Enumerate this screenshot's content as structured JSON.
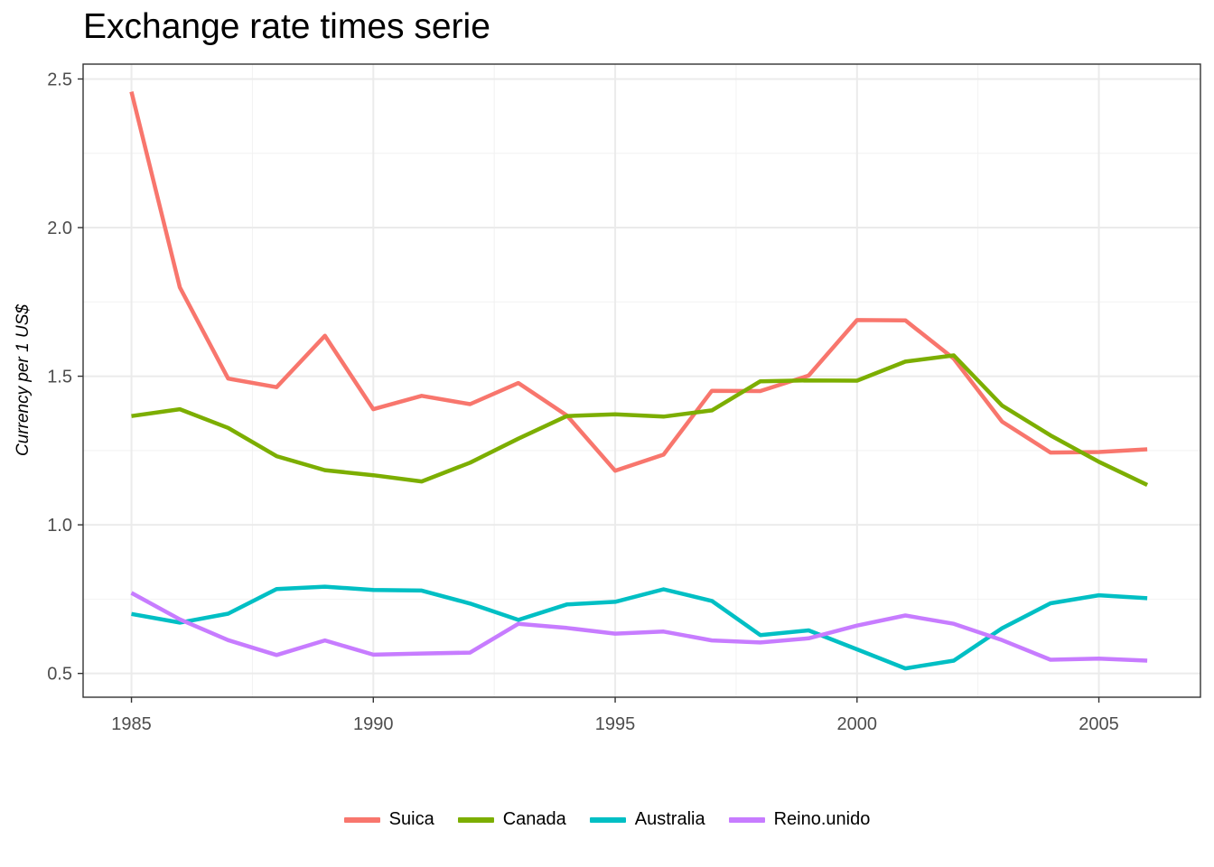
{
  "chart_data": {
    "type": "line",
    "title": "Exchange rate times serie",
    "xlabel": "",
    "ylabel": "Currency per 1 US$",
    "x": [
      1985,
      1986,
      1987,
      1988,
      1989,
      1990,
      1991,
      1992,
      1993,
      1994,
      1995,
      1996,
      1997,
      1998,
      1999,
      2000,
      2001,
      2002,
      2003,
      2004,
      2005,
      2006
    ],
    "xlim": [
      1984,
      2007.1
    ],
    "ylim": [
      0.42,
      2.55
    ],
    "xticks": [
      1985,
      1990,
      1995,
      2000,
      2005
    ],
    "xtick_labels": [
      "1985",
      "1990",
      "1995",
      "2000",
      "2005"
    ],
    "yticks": [
      0.5,
      1.0,
      1.5,
      2.0,
      2.5
    ],
    "ytick_labels": [
      "0.5",
      "1.0",
      "1.5",
      "2.0",
      "2.5"
    ],
    "grid": true,
    "legend_position": "bottom",
    "series": [
      {
        "name": "Suica",
        "color": "#F8766D",
        "values": [
          2.457,
          1.799,
          1.492,
          1.463,
          1.636,
          1.389,
          1.434,
          1.406,
          1.477,
          1.368,
          1.182,
          1.236,
          1.451,
          1.45,
          1.502,
          1.689,
          1.688,
          1.559,
          1.347,
          1.243,
          1.245,
          1.254
        ]
      },
      {
        "name": "Canada",
        "color": "#7CAE00",
        "values": [
          1.366,
          1.389,
          1.326,
          1.231,
          1.184,
          1.167,
          1.146,
          1.209,
          1.29,
          1.366,
          1.372,
          1.364,
          1.385,
          1.483,
          1.486,
          1.485,
          1.549,
          1.57,
          1.401,
          1.301,
          1.212,
          1.134
        ]
      },
      {
        "name": "Australia",
        "color": "#00BFC4",
        "values": [
          0.7,
          0.671,
          0.701,
          0.784,
          0.792,
          0.781,
          0.779,
          0.735,
          0.68,
          0.732,
          0.741,
          0.783,
          0.744,
          0.629,
          0.645,
          0.581,
          0.517,
          0.543,
          0.652,
          0.736,
          0.763,
          0.753
        ]
      },
      {
        "name": "Reino.unido",
        "color": "#C77CFF",
        "values": [
          0.771,
          0.682,
          0.612,
          0.562,
          0.611,
          0.563,
          0.567,
          0.57,
          0.667,
          0.653,
          0.634,
          0.641,
          0.611,
          0.604,
          0.618,
          0.661,
          0.695,
          0.667,
          0.612,
          0.546,
          0.55,
          0.543
        ]
      }
    ]
  }
}
